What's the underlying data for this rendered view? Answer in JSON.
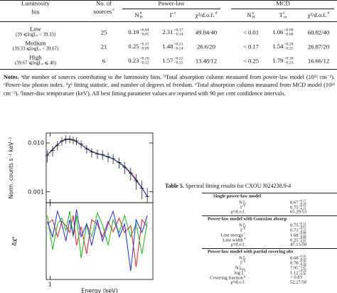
{
  "table4": {
    "headers": {
      "bin": [
        "Luminosity",
        "bin"
      ],
      "sources": [
        "No. of",
        {
          "base": "sources",
          "sup": "a"
        }
      ],
      "groups": [
        "Power-law",
        "MCD"
      ],
      "sub": [
        {
          "base": "N",
          "sup": "b",
          "sub": "H"
        },
        {
          "base": "Γ",
          "sup": "c"
        },
        {
          "base": "χ²/d.o.f.",
          "sup": "d"
        },
        {
          "base": "N",
          "sup": "e",
          "sub": "H"
        },
        {
          "base": "T",
          "sup": "f",
          "sub": "in"
        },
        {
          "base": "χ²/d.o.f.",
          "sup": "d"
        }
      ]
    },
    "rows": [
      {
        "bin": "Low",
        "range": "(39 ⩽logLₓ < 39.33)",
        "cells": [
          "25",
          {
            "base": "0.19",
            "sup": "+0.04",
            "sub": "−0.05"
          },
          {
            "base": "2.31",
            "sup": "+0.17",
            "sub": "−0.14"
          },
          "49.84/40",
          "< 0.01",
          {
            "base": "1.06",
            "sup": "+0.08",
            "sub": "−0.06"
          },
          "60.82/40"
        ]
      },
      {
        "bin": "Medium",
        "range": "(39.33 ⩽logLₓ < 39.67)",
        "cells": [
          "21",
          {
            "base": "0.25",
            "sup": "+0.15",
            "sub": "−0.09"
          },
          {
            "base": "1.48",
            "sup": "+0.21",
            "sub": "−0.24"
          },
          "26.6/20",
          "< 0.17",
          {
            "base": "1.54",
            "sup": "+0.28",
            "sub": "−0.25"
          },
          "26.87/20"
        ]
      },
      {
        "bin": "High",
        "range": "(39.67 ⩽logLₓ ⩽ 40)",
        "cells": [
          "6",
          {
            "base": "0.23",
            "sup": "+0.20",
            "sub": "−0.12"
          },
          {
            "base": "1.57",
            "sup": "+0.22",
            "sub": "−0.25"
          },
          "13.48/12",
          "< 0.25",
          {
            "base": "1.79",
            "sup": "+0.30",
            "sub": "−0.23"
          },
          "16.66/12"
        ]
      }
    ]
  },
  "notes": {
    "label": "Notes.",
    "items": [
      {
        "sup": "a",
        "text": "the number of sources contributing to the luminosity bins. "
      },
      {
        "sup": "b",
        "text": "Total absorption column measured from power-law model (10²² cm⁻²). "
      },
      {
        "sup": "c",
        "text": "Power-law photon index. "
      },
      {
        "sup": "d",
        "text": "χ² fitting statistic, and number of degrees of freedom. "
      },
      {
        "sup": "e",
        "text": "Total absorption column measured from MCD model (10²² cm⁻²). "
      },
      {
        "sup": "f",
        "text": "Inner-disc temperature (keV). "
      }
    ],
    "closing": "All best fitting parameter values are reported with 90 per cent confidence intervals."
  },
  "chart_data": {
    "type": "spectrum",
    "xlabel": "Energy (keV)",
    "ylabel": "Norm. counts s⁻¹ keV⁻¹",
    "residual_label": "Δχ²",
    "log_x": true,
    "log_y": true,
    "color": "#000000",
    "x": [
      0.95,
      1.05,
      1.15,
      1.25,
      1.35,
      1.45,
      1.55,
      1.65,
      1.8,
      2.0,
      2.2,
      2.45,
      2.7,
      3.0,
      3.3,
      3.7,
      4.1,
      4.6,
      5.1,
      5.7,
      6.3
    ],
    "values": [
      0.0055,
      0.007,
      0.009,
      0.011,
      0.012,
      0.012,
      0.0115,
      0.011,
      0.0095,
      0.0075,
      0.0065,
      0.006,
      0.0058,
      0.0052,
      0.0048,
      0.004,
      0.0032,
      0.0024,
      0.0017,
      0.0012,
      0.0008
    ],
    "yerr": [
      0.0015,
      0.0017,
      0.002,
      0.0022,
      0.0022,
      0.0022,
      0.0021,
      0.002,
      0.0018,
      0.0015,
      0.0014,
      0.0013,
      0.0013,
      0.0012,
      0.0011,
      0.001,
      0.0009,
      0.0007,
      0.0006,
      0.0005,
      0.0004
    ],
    "models": [
      {
        "color": "#e02020",
        "values": [
          0.0058,
          0.0075,
          0.0093,
          0.0108,
          0.0116,
          0.0118,
          0.0114,
          0.0106,
          0.0092,
          0.0078,
          0.0068,
          0.0061,
          0.0057,
          0.0052,
          0.0047,
          0.004,
          0.0033,
          0.0025,
          0.0018,
          0.0012,
          0.0008
        ]
      },
      {
        "color": "#20b020",
        "values": [
          0.0056,
          0.0073,
          0.0091,
          0.0109,
          0.0118,
          0.0119,
          0.0115,
          0.0104,
          0.0094,
          0.0077,
          0.0067,
          0.006,
          0.0056,
          0.0051,
          0.0047,
          0.0039,
          0.0032,
          0.0024,
          0.0017,
          0.0012,
          0.0008
        ]
      },
      {
        "color": "#2030d0",
        "values": [
          0.0057,
          0.0072,
          0.0092,
          0.011,
          0.0119,
          0.012,
          0.0116,
          0.0107,
          0.0093,
          0.0076,
          0.0066,
          0.006,
          0.0057,
          0.0052,
          0.0047,
          0.004,
          0.0032,
          0.0024,
          0.0017,
          0.0012,
          0.0008
        ]
      }
    ],
    "residuals": [
      {
        "color": "#e02020",
        "values": [
          0.5,
          1,
          -1,
          0.8,
          0.3,
          -0.5,
          1.5,
          -2,
          0.2,
          -3,
          1,
          0.5,
          -1,
          0.8,
          -0.4,
          1.2,
          -0.5,
          0.3,
          -4.5,
          1,
          0.2
        ]
      },
      {
        "color": "#20b020",
        "values": [
          1.5,
          -2.5,
          0.5,
          1.2,
          -0.3,
          2,
          -1,
          1.5,
          -3.5,
          0.5,
          -1,
          1.8,
          0.4,
          -2,
          1,
          -0.5,
          1.5,
          -1,
          0.5,
          -3,
          0.8
        ]
      },
      {
        "color": "#2030d0",
        "values": [
          0.8,
          -1,
          2,
          0.5,
          -1.5,
          1,
          -0.8,
          2.2,
          -1,
          0.5,
          -2,
          1,
          -1.5,
          0.5,
          2,
          -1,
          0.5,
          -5,
          1,
          -0.5,
          1.5
        ]
      }
    ],
    "xlim": [
      0.93,
      7
    ],
    "xticks": [
      1
    ],
    "ylim": [
      0.0006,
      0.016
    ],
    "yticks": [
      0.001,
      {
        "value": 0.01,
        "label": "0.010"
      }
    ],
    "residual_ylim": [
      -6,
      3
    ]
  },
  "table5": {
    "caption": {
      "label": "Table 5.",
      "text": "Spectral fitting results for CXOU J024238.9-4"
    },
    "sections": [
      {
        "title": "Single power-law model",
        "rows": [
          [
            {
              "base": "N",
              "sup": "a",
              "sub": "H"
            },
            {
              "base": "0.67",
              "sup": "+0.17",
              "sub": "−0.14"
            }
          ],
          [
            {
              "base": "Γ",
              "sup": "b"
            },
            {
              "base": "0.75",
              "sup": "+0.12",
              "sub": "−0.11"
            }
          ],
          [
            "χ²/d.o.f.",
            "65.29/53"
          ]
        ]
      },
      {
        "title": "Power-law model with Gaussian absorp",
        "rows": [
          [
            {
              "base": "N",
              "sup": "a",
              "sub": "H"
            },
            {
              "base": "0.75",
              "sup": "+0.12",
              "sub": "−0.07"
            }
          ],
          [
            {
              "base": "Γ",
              "sup": "b"
            },
            {
              "base": "0.73",
              "sup": "+0.12",
              "sub": "−0.12"
            }
          ],
          [
            {
              "base": "Line energy",
              "sup": "c"
            },
            {
              "base": "1.68",
              "sup": "+0.08",
              "sub": "−0.08"
            }
          ],
          [
            {
              "base": "Line width",
              "sup": "d"
            },
            {
              "base": "0.25",
              "sup": "+0.09",
              "sub": "−0.05"
            }
          ],
          [
            "χ²/d.o.f.",
            "47.13/50"
          ]
        ]
      },
      {
        "title": "Power-law model with partial covering abs",
        "rows": [
          [
            {
              "base": "N",
              "sup": "a",
              "sub": "H"
            },
            {
              "base": "0.68",
              "sup": "+0.30",
              "sub": "−0.19"
            }
          ],
          [
            {
              "base": "Γ",
              "sup": "b"
            },
            {
              "base": "0.78",
              "sup": "+0.20",
              "sub": "−0.19"
            }
          ],
          [
            {
              "base": "N",
              "sup": "e",
              "sub": "H,pc"
            },
            {
              "base": "7.95",
              "sup": "+2.28",
              "sub": "−1.59"
            }
          ],
          [
            {
              "base": "log ξ",
              "sup": "f"
            },
            {
              "base": "1.12",
              "sup": "+0.24",
              "sub": "−0.36"
            }
          ],
          [
            {
              "base": "Covering fraction",
              "sup": "g"
            },
            "> 0.83"
          ],
          [
            "χ²/d.o.f.",
            "52.27/50"
          ]
        ]
      }
    ]
  }
}
